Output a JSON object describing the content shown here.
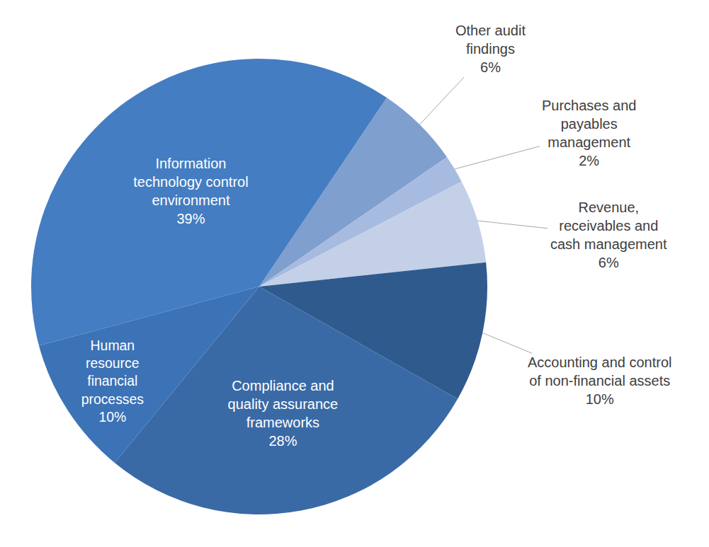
{
  "chart_data": {
    "type": "pie",
    "categories": [
      "Other audit\nfindings",
      "Purchases and\npayables\nmanagement",
      "Revenue,\nreceivables and\ncash management",
      "Accounting and control\nof non-financial assets",
      "Compliance and\nquality assurance\nframeworks",
      "Human\nresource\nfinancial\nprocesses",
      "Information\ntechnology control\nenvironment"
    ],
    "values": [
      6,
      2,
      6,
      10,
      28,
      10,
      39
    ],
    "value_labels": [
      "6%",
      "2%",
      "6%",
      "10%",
      "28%",
      "10%",
      "39%"
    ],
    "colors": [
      "#7f9fcf",
      "#a6bbdf",
      "#c3d0e8",
      "#2f5a8e",
      "#3a6aa6",
      "#3c72b6",
      "#447dc2"
    ],
    "data_labels": true
  }
}
